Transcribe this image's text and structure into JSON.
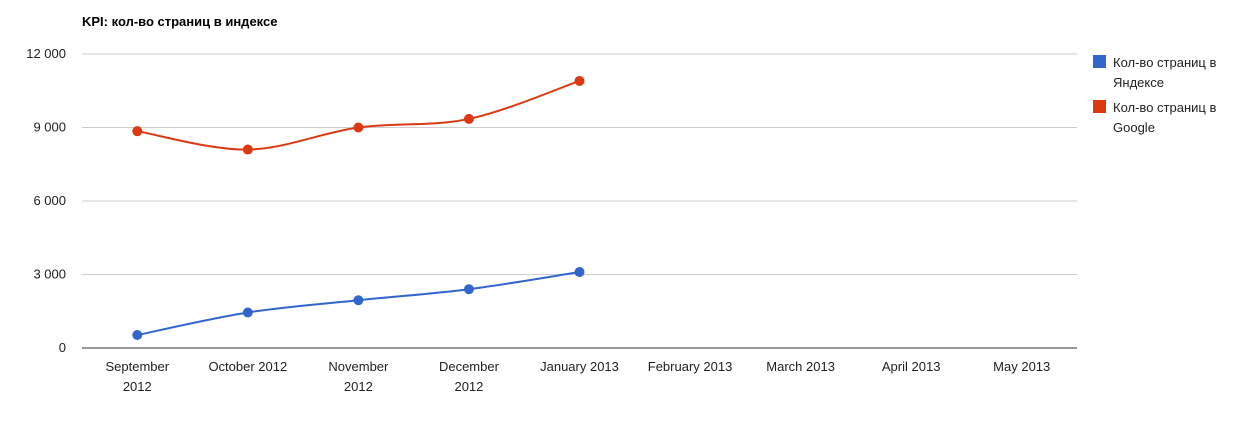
{
  "chart_data": {
    "type": "line",
    "title": "KPI: кол-во страниц в индексе",
    "categories": [
      "September 2012",
      "October 2012",
      "November 2012",
      "December 2012",
      "January 2013",
      "February 2013",
      "March 2013",
      "April 2013",
      "May 2013"
    ],
    "series": [
      {
        "name": "Кол-во страниц в Яндексе",
        "color": "#3366cc",
        "values": [
          530,
          1450,
          1950,
          2400,
          3100,
          null,
          null,
          null,
          null
        ]
      },
      {
        "name": "Кол-во страниц в Google",
        "color": "#dc3912",
        "values": [
          8850,
          8100,
          9000,
          9350,
          10900,
          null,
          null,
          null,
          null
        ]
      }
    ],
    "ylim": [
      0,
      12000
    ],
    "yticks": [
      0,
      {
        "value": 3000,
        "label": "3 000"
      },
      {
        "value": 6000,
        "label": "6 000"
      },
      {
        "value": 9000,
        "label": "9 000"
      },
      {
        "value": 12000,
        "label": "12 000"
      }
    ],
    "grid": true,
    "curve": "smooth",
    "legend": "right"
  }
}
